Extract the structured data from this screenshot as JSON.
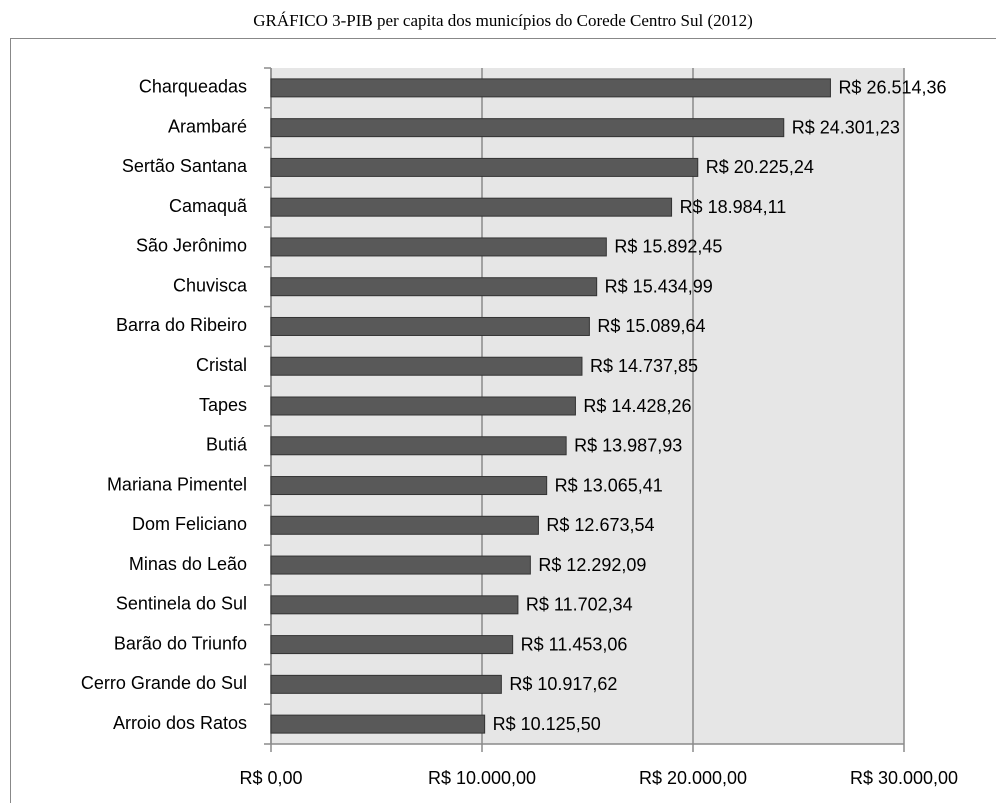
{
  "chart_data": {
    "type": "bar",
    "orientation": "horizontal",
    "title": "GRÁFICO 3-PIB per capita dos municípios do Corede Centro Sul (2012)",
    "categories": [
      "Charqueadas",
      "Arambaré",
      "Sertão Santana",
      "Camaquã",
      "São Jerônimo",
      "Chuvisca",
      "Barra do Ribeiro",
      "Cristal",
      "Tapes",
      "Butiá",
      "Mariana Pimentel",
      "Dom Feliciano",
      "Minas do Leão",
      "Sentinela do Sul",
      "Barão do Triunfo",
      "Cerro Grande do Sul",
      "Arroio dos Ratos"
    ],
    "values": [
      26514.36,
      24301.23,
      20225.24,
      18984.11,
      15892.45,
      15434.99,
      15089.64,
      14737.85,
      14428.26,
      13987.93,
      13065.41,
      12673.54,
      12292.09,
      11702.34,
      11453.06,
      10917.62,
      10125.5
    ],
    "value_labels": [
      "R$ 26.514,36",
      "R$ 24.301,23",
      "R$ 20.225,24",
      "R$ 18.984,11",
      "R$ 15.892,45",
      "R$ 15.434,99",
      "R$ 15.089,64",
      "R$ 14.737,85",
      "R$ 14.428,26",
      "R$ 13.987,93",
      "R$ 13.065,41",
      "R$ 12.673,54",
      "R$ 12.292,09",
      "R$ 11.702,34",
      "R$ 11.453,06",
      "R$ 10.917,62",
      "R$ 10.125,50"
    ],
    "color": "#595959",
    "xlim": [
      0,
      30000
    ],
    "xticks": [
      {
        "value": 0,
        "label": "R$ 0,00"
      },
      {
        "value": 10000,
        "label": "R$ 10.000,00"
      },
      {
        "value": 20000,
        "label": "R$ 20.000,00"
      },
      {
        "value": 30000,
        "label": "R$ 30.000,00"
      }
    ],
    "grid": true
  }
}
